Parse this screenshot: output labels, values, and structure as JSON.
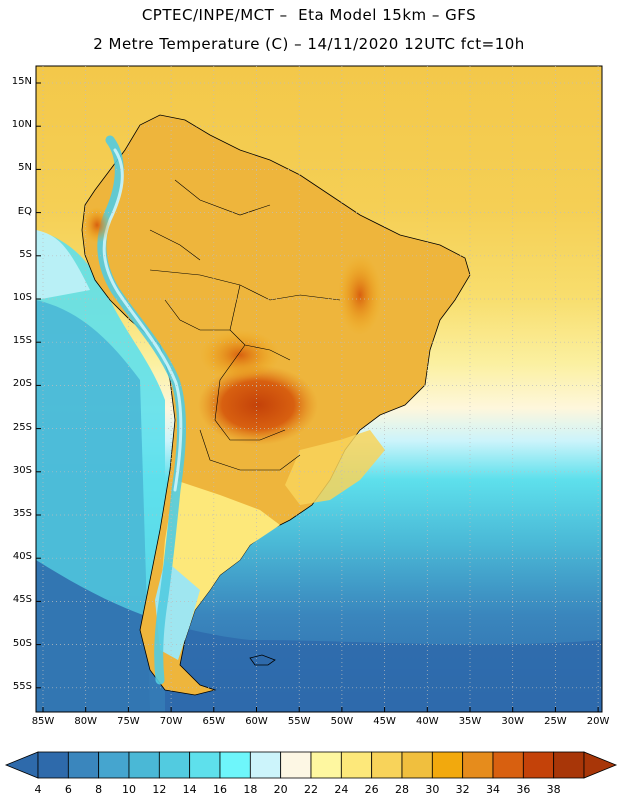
{
  "title_line1": "CPTEC/INPE/MCT –  Eta Model 15km – GFS",
  "title_line2": "2 Metre Temperature (C) – 14/11/2020 12UTC fct=10h",
  "lat_labels": [
    "15N",
    "10N",
    "5N",
    "EQ",
    "5S",
    "10S",
    "15S",
    "20S",
    "25S",
    "30S",
    "35S",
    "40S",
    "45S",
    "50S",
    "55S"
  ],
  "lon_labels": [
    "85W",
    "80W",
    "75W",
    "70W",
    "65W",
    "60W",
    "55W",
    "50W",
    "45W",
    "40W",
    "35W",
    "30W",
    "25W",
    "20W"
  ],
  "colorbar": {
    "labels": [
      "4",
      "6",
      "8",
      "10",
      "12",
      "14",
      "16",
      "18",
      "20",
      "22",
      "24",
      "26",
      "28",
      "30",
      "32",
      "34",
      "36",
      "38"
    ],
    "colors": [
      "#2e6aab",
      "#3a86bd",
      "#45a5cf",
      "#4ab8d6",
      "#52cbe0",
      "#5ee0ec",
      "#6ef6fb",
      "#ccf4fb",
      "#fdf7e4",
      "#fef7a0",
      "#fde87a",
      "#f8d35a",
      "#f0bf3e",
      "#f2a90d",
      "#e68c1c",
      "#d86010",
      "#c44209",
      "#a83608"
    ]
  },
  "palette": {
    "ocean_cold": "#2e6aab",
    "ocean_cool": "#3f96c8",
    "ocean_mild": "#52cbe0",
    "ocean_warm": "#f6d355",
    "land_warm": "#eeb53c",
    "land_hot": "#c44209",
    "grid": "#bdbdbd"
  }
}
